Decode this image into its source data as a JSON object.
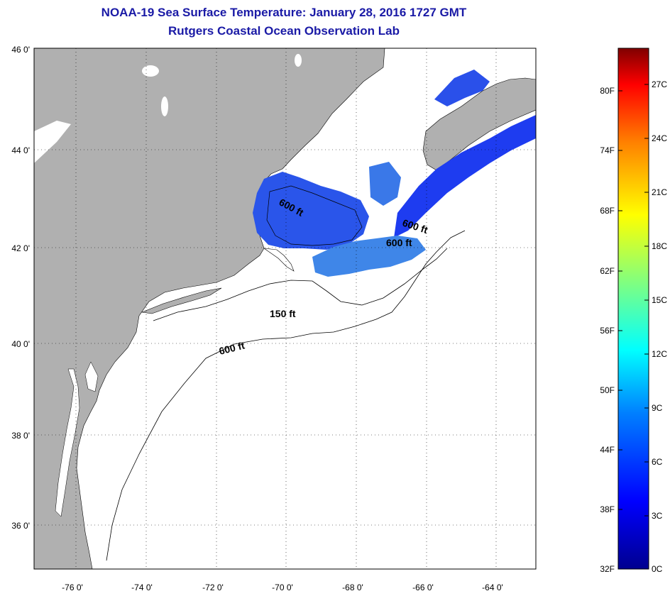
{
  "title": {
    "line1": "NOAA-19 Sea Surface Temperature:  January 28, 2016 1727 GMT",
    "line2": "Rutgers Coastal Ocean Observation Lab"
  },
  "map": {
    "lat_labels": [
      "46 0'",
      "44 0'",
      "42 0'",
      "40 0'",
      "38 0'",
      "36 0'"
    ],
    "lon_labels": [
      "-76 0'",
      "-74 0'",
      "-72 0'",
      "-70 0'",
      "-68 0'",
      "-66 0'",
      "-64 0'"
    ],
    "contour_labels": [
      "600 ft",
      "600 ft",
      "600 ft",
      "150 ft",
      "600 ft"
    ],
    "colors": {
      "land": "#b0b0b0",
      "ocean": "#ffffff",
      "sst_dark": "#1e3cf0",
      "sst_mid": "#2f6fe6",
      "sst_light": "#4a9ce8"
    }
  },
  "colorbar": {
    "fahrenheit": [
      "80F",
      "74F",
      "68F",
      "62F",
      "56F",
      "50F",
      "44F",
      "38F",
      "32F"
    ],
    "celsius": [
      "27C",
      "24C",
      "21C",
      "18C",
      "15C",
      "12C",
      "9C",
      "6C",
      "3C",
      "0C"
    ]
  }
}
